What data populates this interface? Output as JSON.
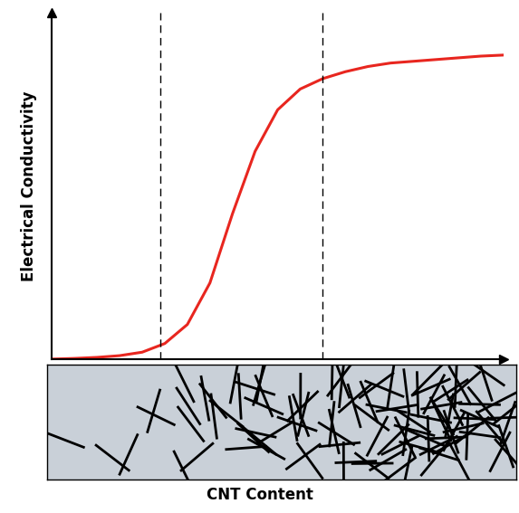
{
  "chart_data": {
    "type": "line",
    "x_label": "CNT Content",
    "y_label": "Electrical Conductivity",
    "x": [
      0,
      5,
      10,
      15,
      20,
      25,
      30,
      35,
      40,
      45,
      50,
      55,
      60,
      65,
      70,
      75,
      80,
      85,
      90,
      95,
      100
    ],
    "values": [
      0,
      0.2,
      0.5,
      1,
      2,
      4.5,
      10,
      22,
      42,
      60,
      72,
      78,
      81,
      83,
      84.5,
      85.5,
      86,
      86.5,
      87,
      87.5,
      87.8
    ],
    "color": "#e8261f",
    "vlines": [
      24,
      60
    ],
    "xlim": [
      0,
      100
    ],
    "ylim": [
      0,
      100
    ],
    "tick_labels": false,
    "grid": false
  }
}
